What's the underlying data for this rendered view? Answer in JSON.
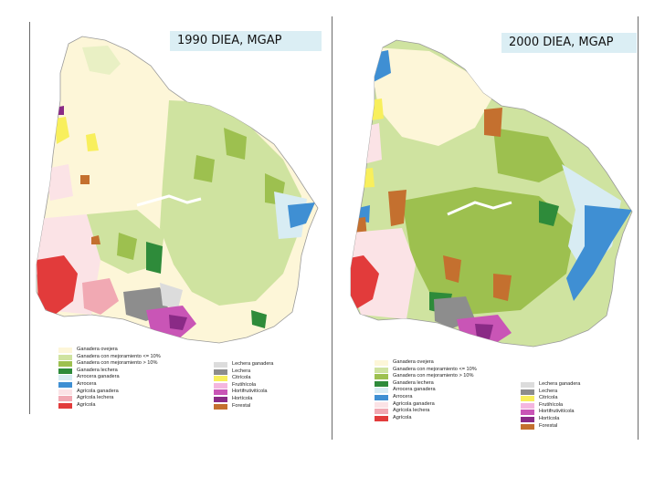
{
  "maps": [
    {
      "title": "1990 DIEA, MGAP",
      "legend_left": [
        {
          "label": "Ganadera ovejera",
          "color": "#fdf6d8"
        },
        {
          "label": "Ganadera con mejoramiento <= 10%",
          "color": "#cfe3a0"
        },
        {
          "label": "Ganadera con mejoramiento > 10%",
          "color": "#9dc04f"
        },
        {
          "label": "Ganadera lechera",
          "color": "#2e8b3a"
        },
        {
          "label": "Arrocera ganadera",
          "color": "#d8ecf3"
        },
        {
          "label": "Arrocera",
          "color": "#3f8fd3"
        },
        {
          "label": "Agrícola ganadera",
          "color": "#fbe3e6"
        },
        {
          "label": "Agrícola lechera",
          "color": "#f1a9b3"
        },
        {
          "label": "Agrícola",
          "color": "#e23b3b"
        }
      ],
      "legend_right": [
        {
          "label": "Lechera ganadera",
          "color": "#dcdcdc"
        },
        {
          "label": "Lechera",
          "color": "#8d8d8d"
        },
        {
          "label": "Citrícola",
          "color": "#f8ef5c"
        },
        {
          "label": "Frutihícola",
          "color": "#f4b6df"
        },
        {
          "label": "Hortifrutivitícola",
          "color": "#c955b6"
        },
        {
          "label": "Hortícola",
          "color": "#8a2a86"
        },
        {
          "label": "Forestal",
          "color": "#c4702f"
        }
      ]
    },
    {
      "title": "2000 DIEA, MGAP",
      "legend_left": [
        {
          "label": "Ganadera ovejera",
          "color": "#fdf6d8"
        },
        {
          "label": "Ganadera con mejoramiento <= 10%",
          "color": "#cfe3a0"
        },
        {
          "label": "Ganadera con mejoramiento > 10%",
          "color": "#9dc04f"
        },
        {
          "label": "Ganadera lechera",
          "color": "#2e8b3a"
        },
        {
          "label": "Arrocera ganadera",
          "color": "#d8ecf3"
        },
        {
          "label": "Arrocera",
          "color": "#3f8fd3"
        },
        {
          "label": "Agrícola ganadera",
          "color": "#fbe3e6"
        },
        {
          "label": "Agrícola lechera",
          "color": "#f1a9b3"
        },
        {
          "label": "Agrícola",
          "color": "#e23b3b"
        }
      ],
      "legend_right": [
        {
          "label": "Lechera ganadera",
          "color": "#dcdcdc"
        },
        {
          "label": "Lechera",
          "color": "#8d8d8d"
        },
        {
          "label": "Citrícola",
          "color": "#f8ef5c"
        },
        {
          "label": "Frutihícola",
          "color": "#f4b6df"
        },
        {
          "label": "Hortifrutivitícola",
          "color": "#c955b6"
        },
        {
          "label": "Hortícola",
          "color": "#8a2a86"
        },
        {
          "label": "Forestal",
          "color": "#c4702f"
        }
      ]
    }
  ]
}
